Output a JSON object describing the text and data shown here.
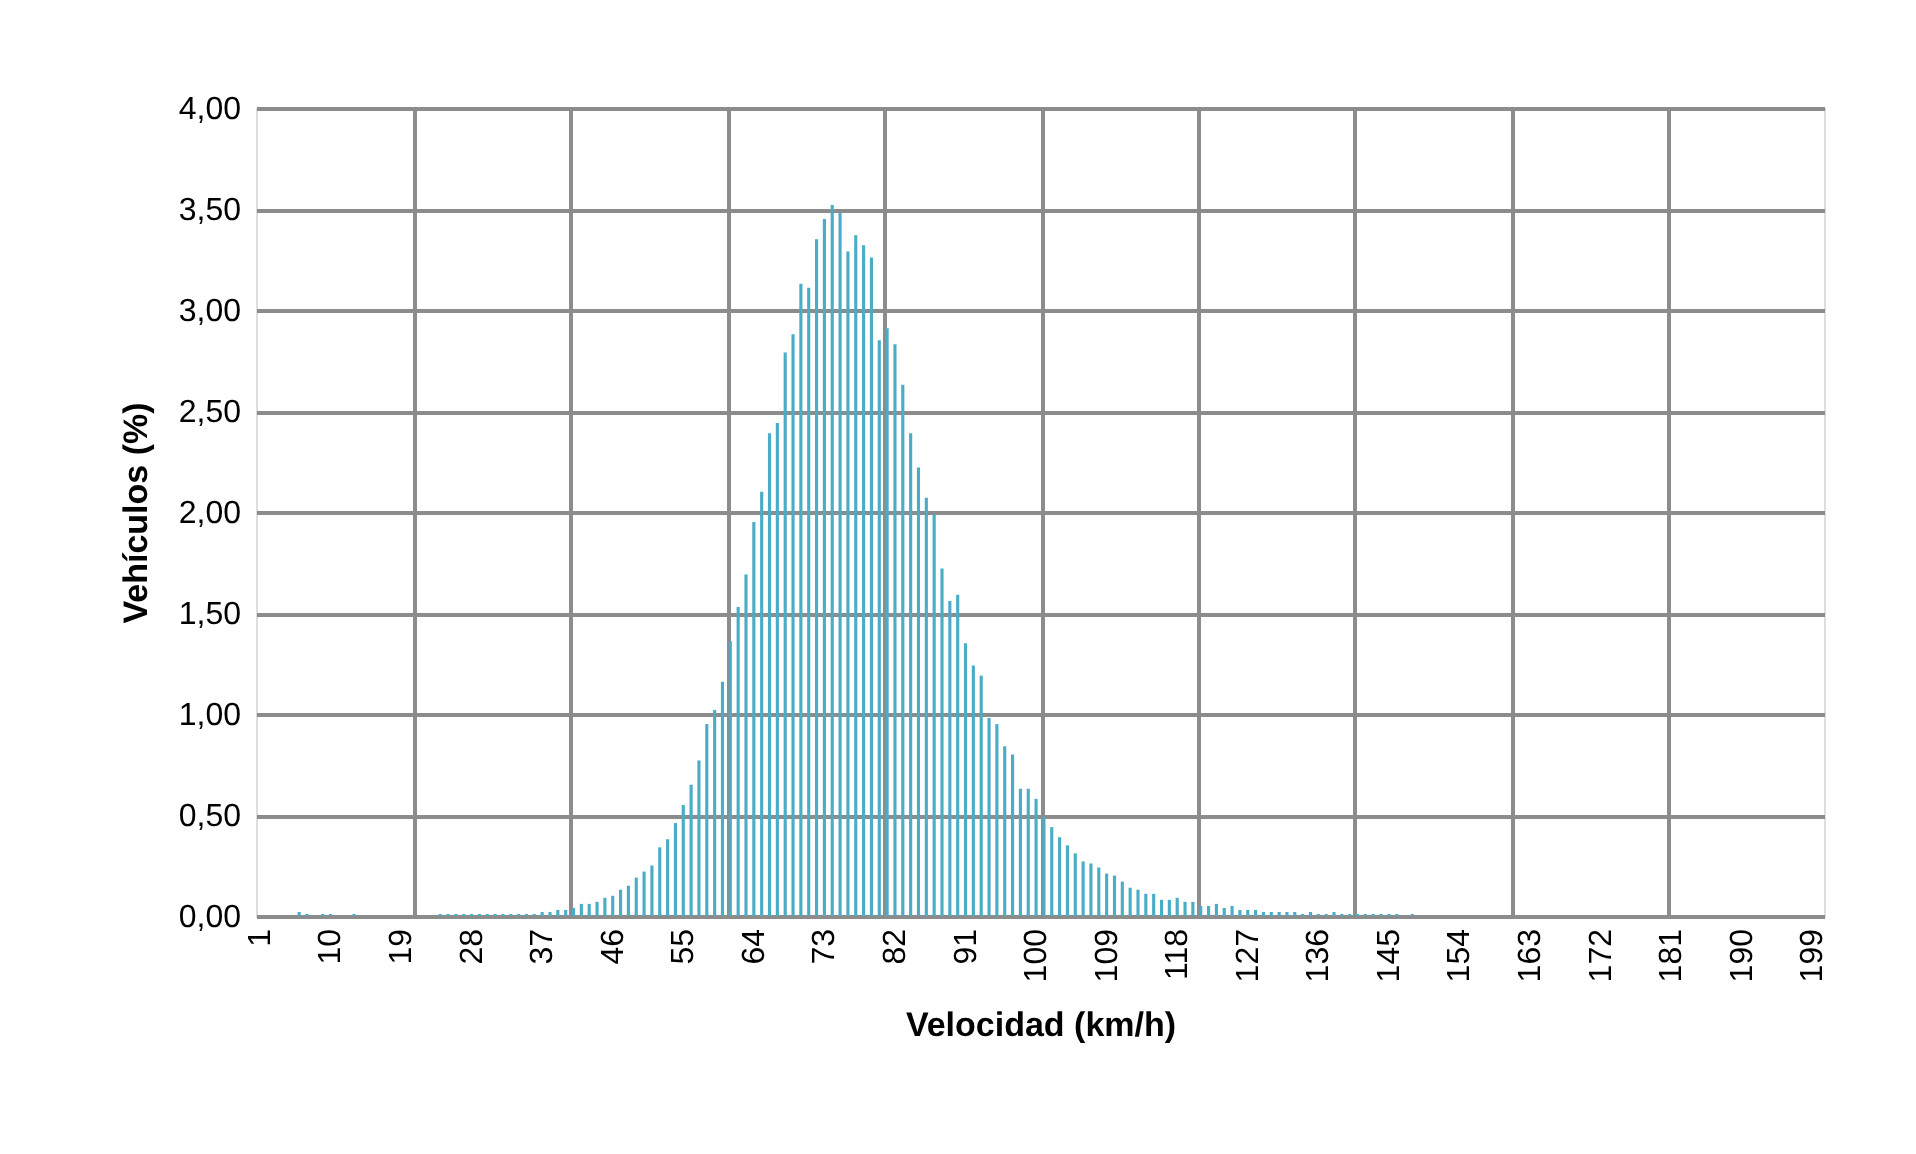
{
  "chart_data": {
    "type": "bar",
    "xlabel": "Velocidad (km/h)",
    "ylabel": "Vehículos (%)",
    "color": "#4bacc6",
    "grid": true,
    "categories": [
      "1",
      null,
      null,
      null,
      null,
      null,
      null,
      null,
      null,
      "10",
      null,
      null,
      null,
      null,
      null,
      null,
      null,
      null,
      "19",
      null,
      null,
      null,
      null,
      null,
      null,
      null,
      null,
      "28",
      null,
      null,
      null,
      null,
      null,
      null,
      null,
      null,
      "37",
      null,
      null,
      null,
      null,
      null,
      null,
      null,
      null,
      "46",
      null,
      null,
      null,
      null,
      null,
      null,
      null,
      null,
      "55",
      null,
      null,
      null,
      null,
      null,
      null,
      null,
      null,
      "64",
      null,
      null,
      null,
      null,
      null,
      null,
      null,
      null,
      "73",
      null,
      null,
      null,
      null,
      null,
      null,
      null,
      null,
      "82",
      null,
      null,
      null,
      null,
      null,
      null,
      null,
      null,
      "91",
      null,
      null,
      null,
      null,
      null,
      null,
      null,
      null,
      "100",
      null,
      null,
      null,
      null,
      null,
      null,
      null,
      null,
      "109",
      null,
      null,
      null,
      null,
      null,
      null,
      null,
      null,
      "118",
      null,
      null,
      null,
      null,
      null,
      null,
      null,
      null,
      "127",
      null,
      null,
      null,
      null,
      null,
      null,
      null,
      null,
      "136",
      null,
      null,
      null,
      null,
      null,
      null,
      null,
      null,
      "145",
      null,
      null,
      null,
      null,
      null,
      null,
      null,
      null,
      "154",
      null,
      null,
      null,
      null,
      null,
      null,
      null,
      null,
      "163",
      null,
      null,
      null,
      null,
      null,
      null,
      null,
      null,
      "172",
      null,
      null,
      null,
      null,
      null,
      null,
      null,
      null,
      "181",
      null,
      null,
      null,
      null,
      null,
      null,
      null,
      null,
      "190",
      null,
      null,
      null,
      null,
      null,
      null,
      null,
      null,
      "199",
      null
    ],
    "values": [
      0,
      0,
      0,
      0,
      0,
      0.02,
      0.01,
      0,
      0.01,
      0.01,
      0,
      0,
      0.01,
      0,
      0,
      0,
      0,
      0,
      0,
      0,
      0,
      0,
      0,
      0.01,
      0.01,
      0.01,
      0.01,
      0.01,
      0.01,
      0.01,
      0.01,
      0.01,
      0.01,
      0.01,
      0.01,
      0.01,
      0.02,
      0.02,
      0.03,
      0.03,
      0.04,
      0.06,
      0.06,
      0.07,
      0.09,
      0.1,
      0.13,
      0.15,
      0.19,
      0.22,
      0.25,
      0.34,
      0.38,
      0.46,
      0.55,
      0.65,
      0.77,
      0.95,
      1.02,
      1.16,
      1.36,
      1.53,
      1.69,
      1.95,
      2.1,
      2.39,
      2.44,
      2.79,
      2.88,
      3.13,
      3.11,
      3.35,
      3.45,
      3.52,
      3.48,
      3.29,
      3.37,
      3.32,
      3.26,
      2.85,
      2.91,
      2.83,
      2.63,
      2.39,
      2.22,
      2.07,
      1.99,
      1.72,
      1.56,
      1.59,
      1.35,
      1.24,
      1.19,
      0.98,
      0.95,
      0.84,
      0.8,
      0.63,
      0.63,
      0.58,
      0.49,
      0.44,
      0.39,
      0.35,
      0.31,
      0.27,
      0.26,
      0.24,
      0.21,
      0.2,
      0.17,
      0.14,
      0.13,
      0.11,
      0.11,
      0.08,
      0.08,
      0.09,
      0.07,
      0.07,
      0.05,
      0.05,
      0.06,
      0.04,
      0.05,
      0.03,
      0.03,
      0.03,
      0.02,
      0.02,
      0.02,
      0.02,
      0.02,
      0.01,
      0.02,
      0.01,
      0.01,
      0.02,
      0.01,
      0.01,
      0.01,
      0.01,
      0.01,
      0.01,
      0.01,
      0.01,
      0,
      0.01,
      0,
      0,
      0,
      0,
      0,
      0,
      0,
      0,
      0,
      0,
      0,
      0,
      0,
      0,
      0,
      0,
      0,
      0,
      0,
      0,
      0,
      0,
      0,
      0,
      0,
      0,
      0,
      0,
      0,
      0,
      0,
      0,
      0,
      0,
      0,
      0,
      0,
      0,
      0,
      0,
      0,
      0,
      0,
      0,
      0,
      0,
      0,
      0,
      0,
      0,
      0,
      0
    ],
    "ylim": [
      0,
      4
    ],
    "yticks": [
      {
        "value": 0,
        "label": "0,00"
      },
      {
        "value": 0.5,
        "label": "0,50"
      },
      {
        "value": 1,
        "label": "1,00"
      },
      {
        "value": 1.5,
        "label": "1,50"
      },
      {
        "value": 2,
        "label": "2,00"
      },
      {
        "value": 2.5,
        "label": "2,50"
      },
      {
        "value": 3,
        "label": "3,00"
      },
      {
        "value": 3.5,
        "label": "3,50"
      },
      {
        "value": 4,
        "label": "4,00"
      }
    ]
  }
}
